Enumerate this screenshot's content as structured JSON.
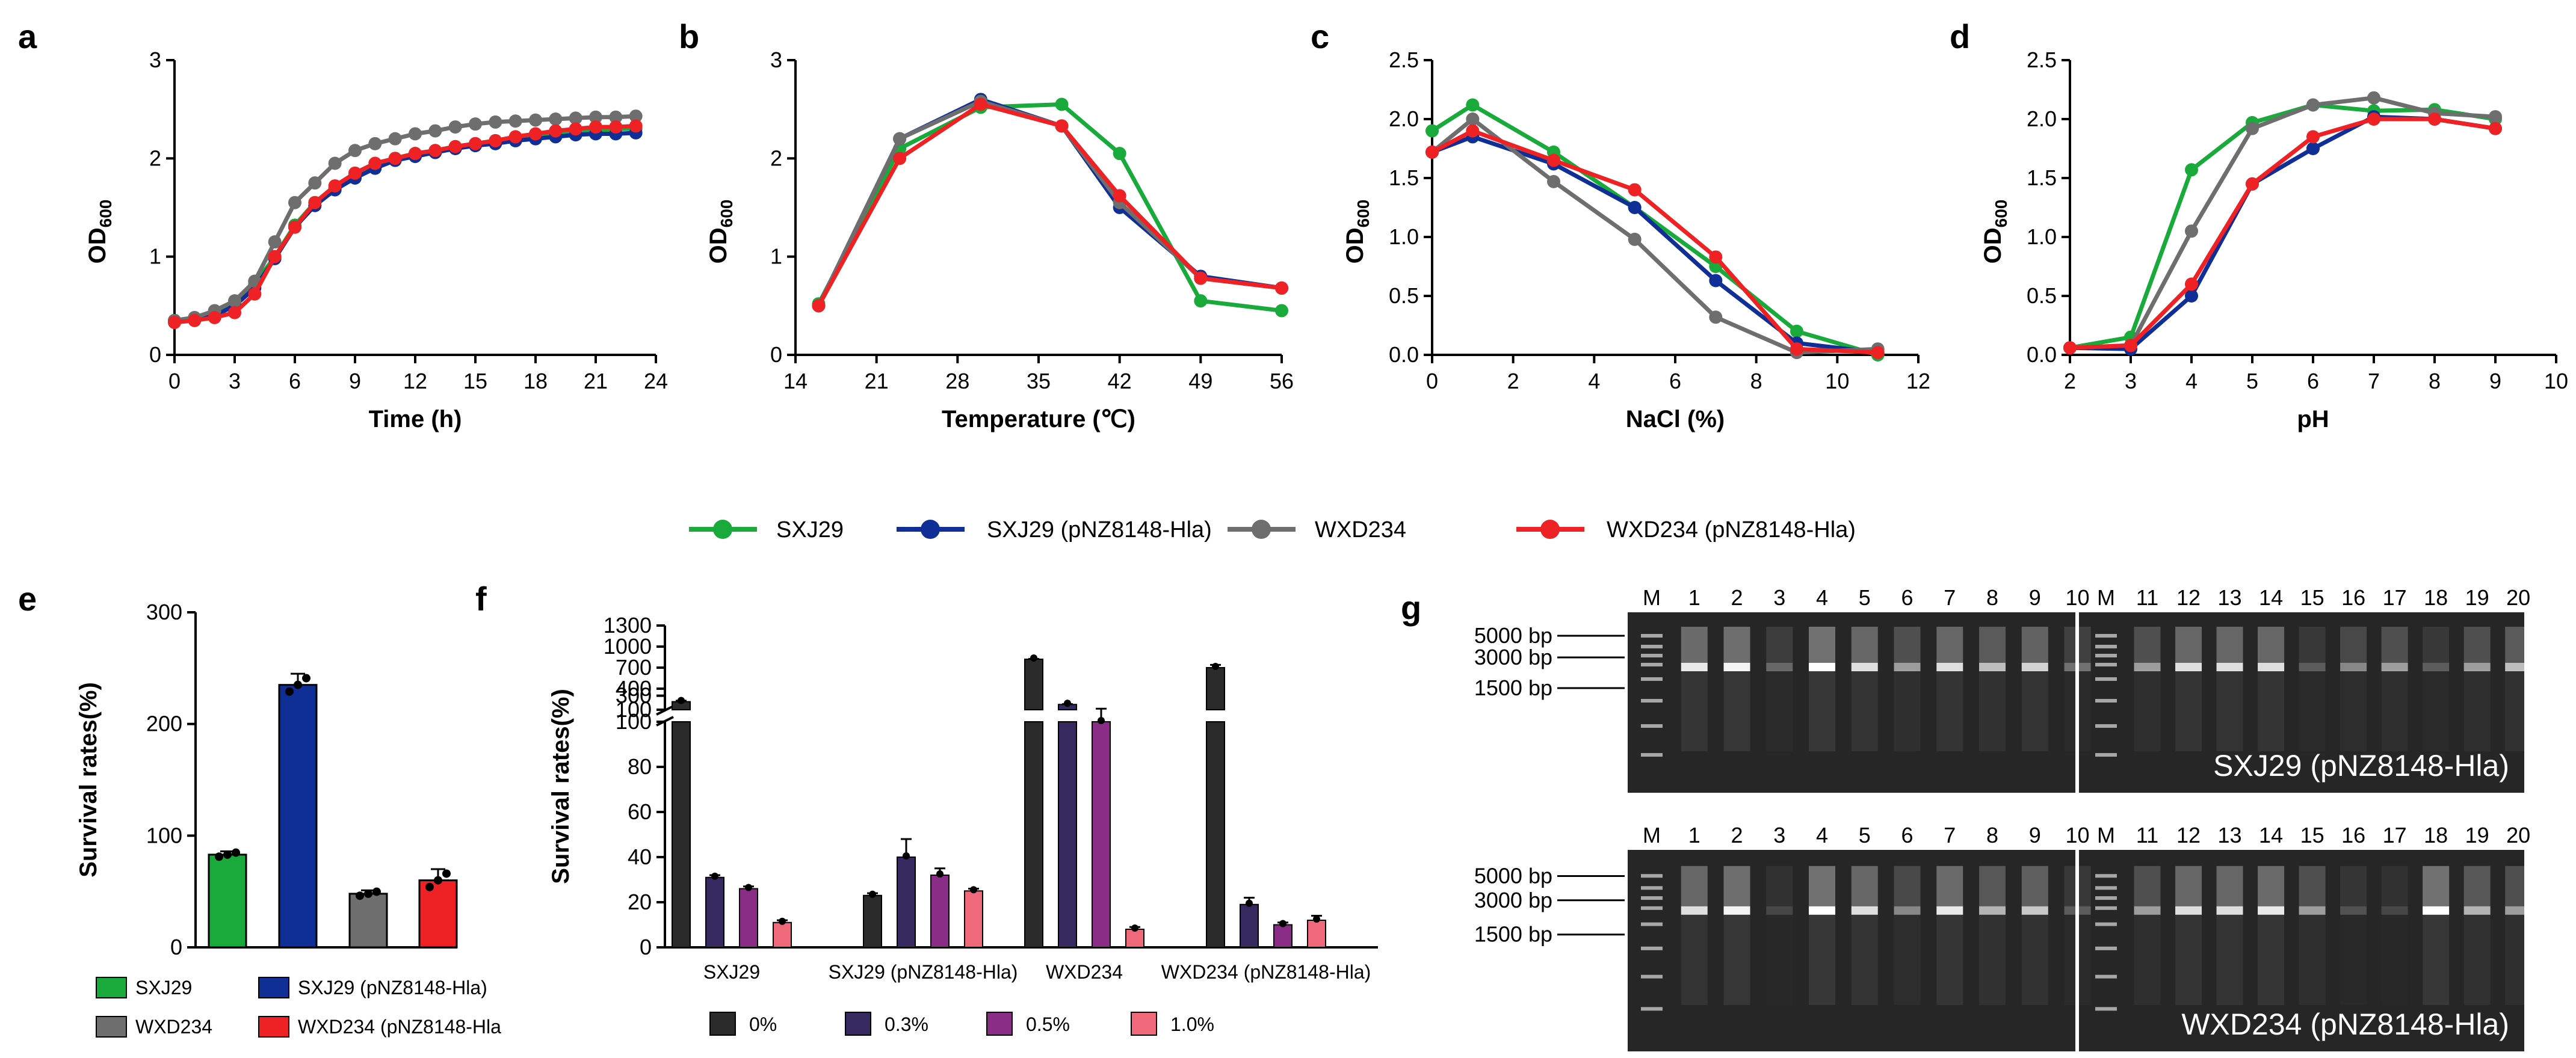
{
  "colors": {
    "SXJ29": "#1aaa3c",
    "SXJ29_pNZ": "#0f2f96",
    "WXD234": "#6e6e6e",
    "WXD234_pNZ": "#ee2124",
    "c0": "#2b2b2b",
    "c03": "#35295f",
    "c05": "#8a2d86",
    "c10": "#f0697a"
  },
  "panels": {
    "a": "a",
    "b": "b",
    "c": "c",
    "d": "d",
    "e": "e",
    "f": "f",
    "g": "g"
  },
  "legend_top": [
    "SXJ29",
    "SXJ29 (pNZ8148-Hla)",
    "WXD234",
    "WXD234 (pNZ8148-Hla)"
  ],
  "legend_e": [
    "SXJ29",
    "SXJ29 (pNZ8148-Hla)",
    "WXD234",
    "WXD234 (pNZ8148-Hla"
  ],
  "legend_f": [
    "0%",
    "0.3%",
    "0.5%",
    "1.0%"
  ],
  "chart_data": [
    {
      "id": "a",
      "type": "line",
      "xlabel": "Time (h)",
      "ylabel": "OD600",
      "xlim": [
        0,
        24
      ],
      "ylim": [
        0,
        3
      ],
      "xticks": [
        0,
        3,
        6,
        9,
        12,
        15,
        18,
        21,
        24
      ],
      "yticks": [
        0,
        1,
        2,
        3
      ],
      "x": [
        0,
        1,
        2,
        3,
        4,
        5,
        6,
        7,
        8,
        9,
        10,
        11,
        12,
        13,
        14,
        15,
        16,
        17,
        18,
        19,
        20,
        21,
        22,
        23
      ],
      "series": [
        {
          "name": "SXJ29",
          "values": [
            0.35,
            0.37,
            0.42,
            0.52,
            0.72,
            1.0,
            1.32,
            1.55,
            1.7,
            1.82,
            1.93,
            2.0,
            2.05,
            2.08,
            2.12,
            2.15,
            2.18,
            2.2,
            2.22,
            2.25,
            2.27,
            2.28,
            2.3,
            2.3
          ]
        },
        {
          "name": "SXJ29 (pNZ8148-Hla)",
          "values": [
            0.35,
            0.37,
            0.4,
            0.5,
            0.68,
            0.98,
            1.3,
            1.52,
            1.68,
            1.8,
            1.9,
            1.98,
            2.02,
            2.06,
            2.1,
            2.13,
            2.15,
            2.18,
            2.2,
            2.22,
            2.24,
            2.25,
            2.25,
            2.26
          ]
        },
        {
          "name": "WXD234",
          "values": [
            0.35,
            0.38,
            0.45,
            0.55,
            0.75,
            1.15,
            1.55,
            1.75,
            1.95,
            2.08,
            2.15,
            2.2,
            2.25,
            2.28,
            2.32,
            2.35,
            2.37,
            2.38,
            2.39,
            2.4,
            2.41,
            2.42,
            2.42,
            2.43
          ]
        },
        {
          "name": "WXD234 (pNZ8148-Hla)",
          "values": [
            0.33,
            0.35,
            0.38,
            0.43,
            0.62,
            1.0,
            1.3,
            1.55,
            1.72,
            1.85,
            1.95,
            2.0,
            2.05,
            2.08,
            2.12,
            2.15,
            2.18,
            2.22,
            2.25,
            2.28,
            2.3,
            2.32,
            2.32,
            2.33
          ]
        }
      ]
    },
    {
      "id": "b",
      "type": "line",
      "xlabel": "Temperature (℃)",
      "ylabel": "OD600",
      "xlim": [
        14,
        56
      ],
      "ylim": [
        0,
        3
      ],
      "xticks": [
        14,
        21,
        28,
        35,
        42,
        49,
        56
      ],
      "yticks": [
        0,
        1,
        2,
        3
      ],
      "x": [
        16,
        23,
        30,
        37,
        42,
        49,
        56
      ],
      "series": [
        {
          "name": "SXJ29",
          "values": [
            0.52,
            2.1,
            2.52,
            2.55,
            2.05,
            0.55,
            0.45
          ]
        },
        {
          "name": "SXJ29 (pNZ8148-Hla)",
          "values": [
            0.5,
            2.2,
            2.6,
            2.33,
            1.5,
            0.8,
            0.68
          ]
        },
        {
          "name": "WXD234",
          "values": [
            0.5,
            2.2,
            2.58,
            2.33,
            1.55,
            0.78,
            0.68
          ]
        },
        {
          "name": "WXD234 (pNZ8148-Hla)",
          "values": [
            0.5,
            2.0,
            2.55,
            2.33,
            1.62,
            0.78,
            0.68
          ]
        }
      ]
    },
    {
      "id": "c",
      "type": "line",
      "xlabel": "NaCl (%)",
      "ylabel": "OD600",
      "xlim": [
        0,
        12
      ],
      "ylim": [
        0,
        2.5
      ],
      "xticks": [
        0,
        2,
        4,
        6,
        8,
        10,
        12
      ],
      "yticks": [
        0.0,
        0.5,
        1.0,
        1.5,
        2.0,
        2.5
      ],
      "x": [
        0,
        1,
        3,
        5,
        7,
        9,
        11
      ],
      "series": [
        {
          "name": "SXJ29",
          "values": [
            1.9,
            2.12,
            1.72,
            1.25,
            0.75,
            0.2,
            0.0
          ]
        },
        {
          "name": "SXJ29 (pNZ8148-Hla)",
          "values": [
            1.72,
            1.85,
            1.62,
            1.25,
            0.63,
            0.1,
            0.02
          ]
        },
        {
          "name": "WXD234",
          "values": [
            1.72,
            2.0,
            1.47,
            0.98,
            0.32,
            0.02,
            0.05
          ]
        },
        {
          "name": "WXD234 (pNZ8148-Hla)",
          "values": [
            1.72,
            1.9,
            1.65,
            1.4,
            0.83,
            0.05,
            0.02
          ]
        }
      ]
    },
    {
      "id": "d",
      "type": "line",
      "xlabel": "pH",
      "ylabel": "OD600",
      "xlim": [
        2,
        10
      ],
      "ylim": [
        0,
        2.5
      ],
      "xticks": [
        2,
        3,
        4,
        5,
        6,
        7,
        8,
        9,
        10
      ],
      "yticks": [
        0.0,
        0.5,
        1.0,
        1.5,
        2.0,
        2.5
      ],
      "x": [
        2,
        3,
        4,
        5,
        6,
        7,
        8,
        9
      ],
      "series": [
        {
          "name": "SXJ29",
          "values": [
            0.06,
            0.15,
            1.57,
            1.97,
            2.12,
            2.07,
            2.08,
            2.0
          ]
        },
        {
          "name": "SXJ29 (pNZ8148-Hla)",
          "values": [
            0.06,
            0.05,
            0.5,
            1.45,
            1.75,
            2.02,
            2.0,
            1.92
          ]
        },
        {
          "name": "WXD234",
          "values": [
            0.06,
            0.08,
            1.05,
            1.92,
            2.12,
            2.18,
            2.05,
            2.02
          ]
        },
        {
          "name": "WXD234 (pNZ8148-Hla)",
          "values": [
            0.06,
            0.08,
            0.6,
            1.45,
            1.85,
            2.0,
            2.0,
            1.92
          ]
        }
      ]
    },
    {
      "id": "e",
      "type": "bar",
      "ylabel": "Survival rates(%)",
      "ylim": [
        0,
        300
      ],
      "yticks": [
        0,
        100,
        200,
        300
      ],
      "categories": [
        "SXJ29",
        "SXJ29 (pNZ8148-Hla)",
        "WXD234",
        "WXD234 (pNZ8148-Hla)"
      ],
      "values": [
        83,
        235,
        48,
        60
      ],
      "errors": [
        3,
        10,
        3,
        10
      ]
    },
    {
      "id": "f",
      "type": "bar",
      "ylabel": "Survival rates(%)",
      "yticks_lower": [
        0,
        20,
        40,
        60,
        80,
        100
      ],
      "yticks_upper": [
        100,
        400,
        700,
        1000,
        1300
      ],
      "ytick_upper_extra": [
        300,
        100
      ],
      "categories": [
        "SXJ29",
        "SXJ29 (pNZ8148-Hla)",
        "WXD234",
        "WXD234 (pNZ8148-Hla)"
      ],
      "series": [
        {
          "name": "0%",
          "values": [
            215,
            23,
            820,
            700
          ],
          "errors": [
            15,
            1,
            5,
            40
          ]
        },
        {
          "name": "0.3%",
          "values": [
            31,
            40,
            175,
            19
          ],
          "errors": [
            1,
            8,
            5,
            3
          ]
        },
        {
          "name": "0.5%",
          "values": [
            26,
            32,
            100,
            10
          ],
          "errors": [
            1,
            3,
            15,
            1
          ]
        },
        {
          "name": "1.0%",
          "values": [
            11,
            25,
            8,
            12
          ],
          "errors": [
            1,
            1,
            1,
            2
          ]
        }
      ]
    },
    {
      "id": "g",
      "type": "gel",
      "lanes_left": [
        "M",
        "1",
        "2",
        "3",
        "4",
        "5",
        "6",
        "7",
        "8",
        "9",
        "10"
      ],
      "lanes_right": [
        "M",
        "11",
        "12",
        "13",
        "14",
        "15",
        "16",
        "17",
        "18",
        "19",
        "20"
      ],
      "markers": [
        "5000 bp",
        "3000 bp",
        "1500 bp"
      ],
      "gels": [
        {
          "label": "SXJ29 (pNZ8148-Hla)",
          "band_intensity": [
            0.9,
            0.95,
            0.3,
            1.0,
            0.85,
            0.55,
            0.85,
            0.7,
            0.8,
            0.35,
            0.55,
            0.85,
            0.85,
            0.85,
            0.25,
            0.45,
            0.55,
            0.25,
            0.55,
            0.7
          ]
        },
        {
          "label": "WXD234 (pNZ8148-Hla)",
          "band_intensity": [
            0.85,
            0.95,
            0.15,
            1.0,
            0.85,
            0.45,
            0.9,
            0.65,
            0.75,
            0.25,
            0.55,
            0.85,
            0.85,
            0.9,
            0.55,
            0.2,
            0.15,
            1.0,
            0.65,
            0.55
          ]
        }
      ]
    }
  ]
}
